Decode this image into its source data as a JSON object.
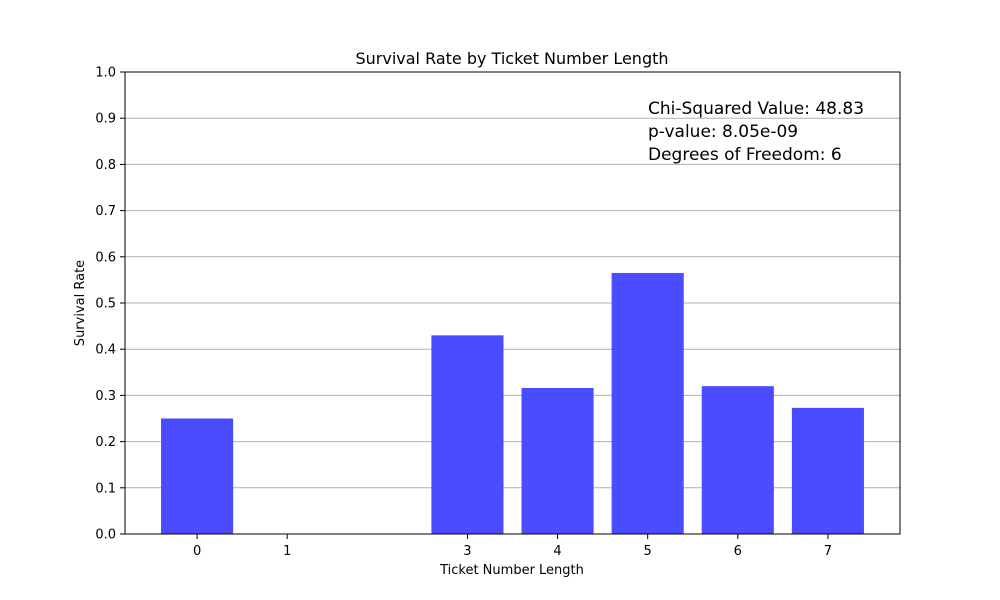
{
  "chart_data": {
    "type": "bar",
    "title": "Survival Rate by Ticket Number Length",
    "xlabel": "Ticket Number Length",
    "ylabel": "Survival Rate",
    "x": [
      0,
      1,
      3,
      4,
      5,
      6,
      7
    ],
    "categories": [
      "0",
      "1",
      "3",
      "4",
      "5",
      "6",
      "7"
    ],
    "values": [
      0.25,
      0.0,
      0.43,
      0.316,
      0.565,
      0.32,
      0.273
    ],
    "xlim": [
      -0.8,
      7.8
    ],
    "ylim": [
      0,
      1.0
    ],
    "yticks": [
      0.0,
      0.1,
      0.2,
      0.3,
      0.4,
      0.5,
      0.6,
      0.7,
      0.8,
      0.9,
      1.0
    ],
    "ytick_labels": [
      "0.0",
      "0.1",
      "0.2",
      "0.3",
      "0.4",
      "0.5",
      "0.6",
      "0.7",
      "0.8",
      "0.9",
      "1.0"
    ],
    "grid": "y",
    "bar_color": "#4b4bff",
    "annotations": [
      "Chi-Squared Value: 48.83",
      "p-value: 8.05e-09",
      "Degrees of Freedom: 6"
    ]
  }
}
